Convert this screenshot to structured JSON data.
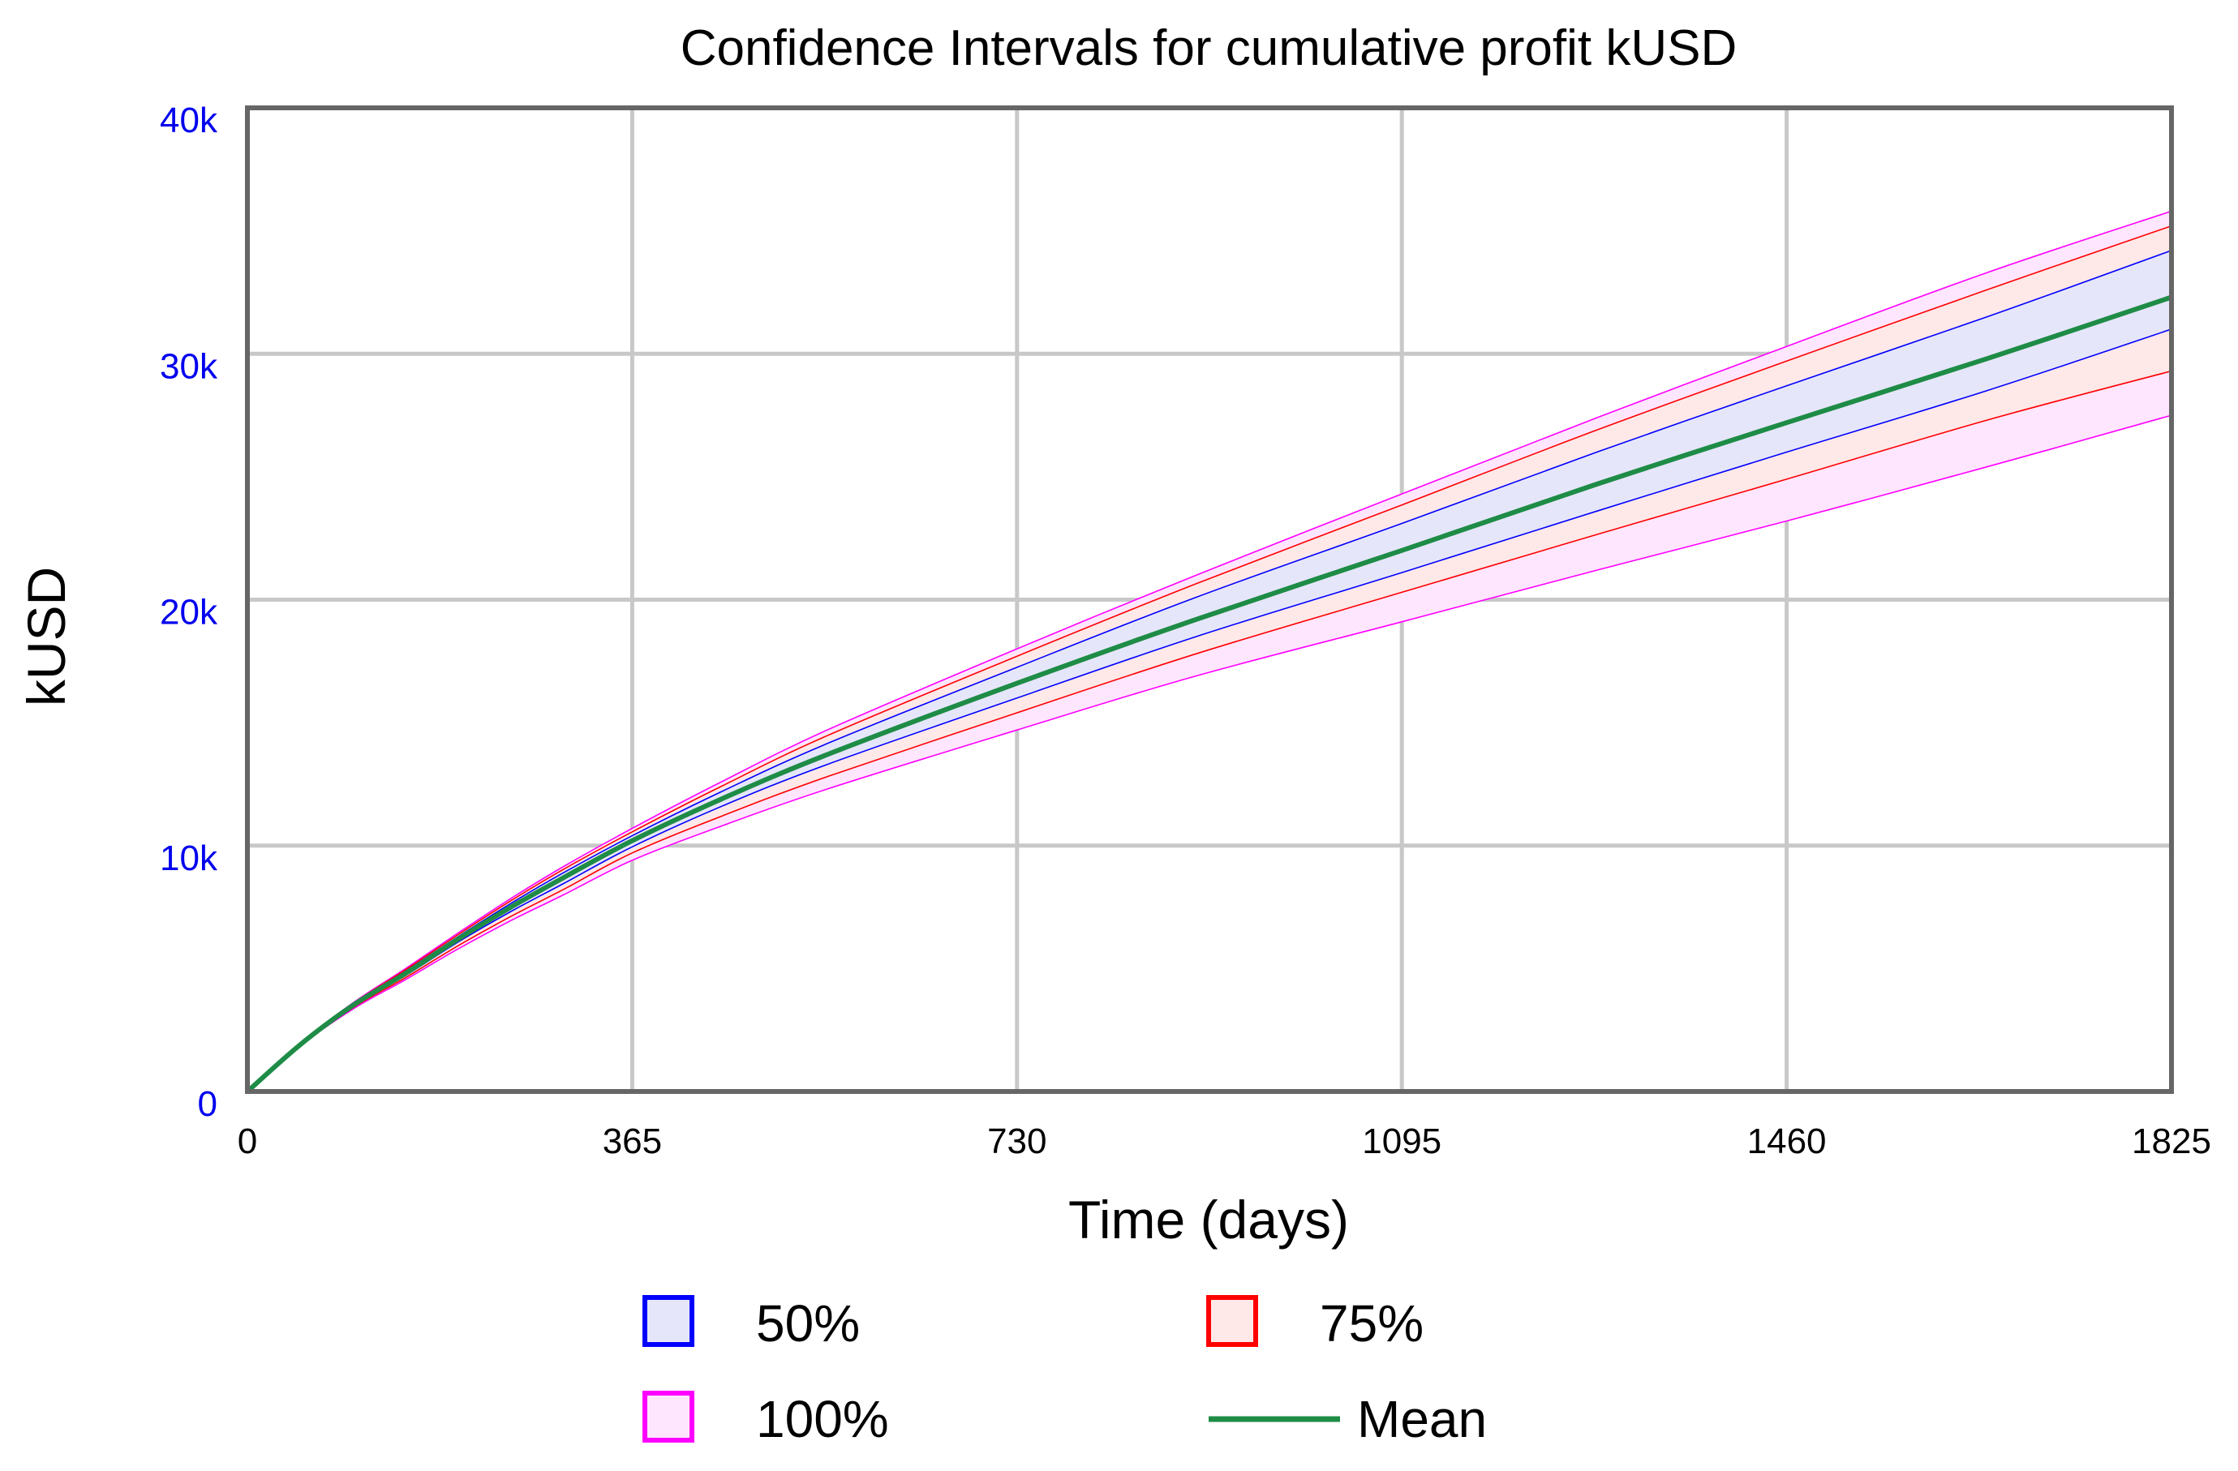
{
  "chart_data": {
    "type": "area",
    "title": "Confidence Intervals for cumulative profit kUSD",
    "xlabel": "Time (days)",
    "ylabel": "kUSD",
    "xlim": [
      0,
      1825
    ],
    "ylim": [
      0,
      40000
    ],
    "x_ticks": [
      {
        "value": 0,
        "label": "0"
      },
      {
        "value": 365,
        "label": "365"
      },
      {
        "value": 730,
        "label": "730"
      },
      {
        "value": 1095,
        "label": "1095"
      },
      {
        "value": 1460,
        "label": "1460"
      },
      {
        "value": 1825,
        "label": "1825"
      }
    ],
    "y_ticks": [
      {
        "value": 0,
        "label": "0"
      },
      {
        "value": 10000,
        "label": "10k"
      },
      {
        "value": 20000,
        "label": "20k"
      },
      {
        "value": 30000,
        "label": "30k"
      },
      {
        "value": 40000,
        "label": "40k"
      }
    ],
    "grid": true,
    "x": [
      0,
      50,
      100,
      150,
      200,
      250,
      300,
      365,
      450,
      550,
      730,
      900,
      1095,
      1280,
      1460,
      1650,
      1825
    ],
    "mean": [
      0,
      1900,
      3500,
      4800,
      6200,
      7500,
      8700,
      10200,
      11900,
      13700,
      16600,
      19200,
      22000,
      24700,
      27200,
      29800,
      32300
    ],
    "bands": [
      {
        "name": "100%",
        "color": "#ff00ff",
        "fill": "#ffe6ff",
        "upper": [
          0,
          1950,
          3600,
          5000,
          6450,
          7850,
          9150,
          10700,
          12600,
          14700,
          18000,
          21000,
          24300,
          27400,
          30300,
          33300,
          35800
        ],
        "lower": [
          0,
          1850,
          3350,
          4550,
          5800,
          6950,
          8000,
          9400,
          10800,
          12300,
          14700,
          16900,
          19100,
          21200,
          23200,
          25400,
          27500
        ]
      },
      {
        "name": "75%",
        "color": "#ff0000",
        "fill": "#ffe8e8",
        "upper": [
          0,
          1930,
          3570,
          4950,
          6380,
          7760,
          9040,
          10560,
          12420,
          14470,
          17700,
          20650,
          23850,
          26900,
          29700,
          32600,
          35200
        ],
        "lower": [
          0,
          1870,
          3400,
          4630,
          5930,
          7120,
          8220,
          9700,
          11200,
          12800,
          15400,
          17800,
          20300,
          22650,
          24900,
          27300,
          29300
        ]
      },
      {
        "name": "50%",
        "color": "#0000ff",
        "fill": "#e6e6fa",
        "upper": [
          0,
          1915,
          3540,
          4890,
          6300,
          7650,
          8900,
          10400,
          12200,
          14150,
          17250,
          20100,
          23100,
          26000,
          28700,
          31500,
          34200
        ],
        "lower": [
          0,
          1885,
          3460,
          4720,
          6080,
          7320,
          8460,
          9950,
          11600,
          13300,
          16000,
          18500,
          21100,
          23600,
          26000,
          28500,
          31000
        ]
      }
    ],
    "mean_series": {
      "name": "Mean",
      "color": "#1e8c46"
    },
    "legend": [
      {
        "label": "50%",
        "kind": "box",
        "stroke": "#0000ff",
        "fill": "#e6e6fa"
      },
      {
        "label": "75%",
        "kind": "box",
        "stroke": "#ff0000",
        "fill": "#ffe8e8"
      },
      {
        "label": "100%",
        "kind": "box",
        "stroke": "#ff00ff",
        "fill": "#ffe6ff"
      },
      {
        "label": "Mean",
        "kind": "line",
        "stroke": "#1e8c46"
      }
    ],
    "legend_position": "bottom-center"
  }
}
